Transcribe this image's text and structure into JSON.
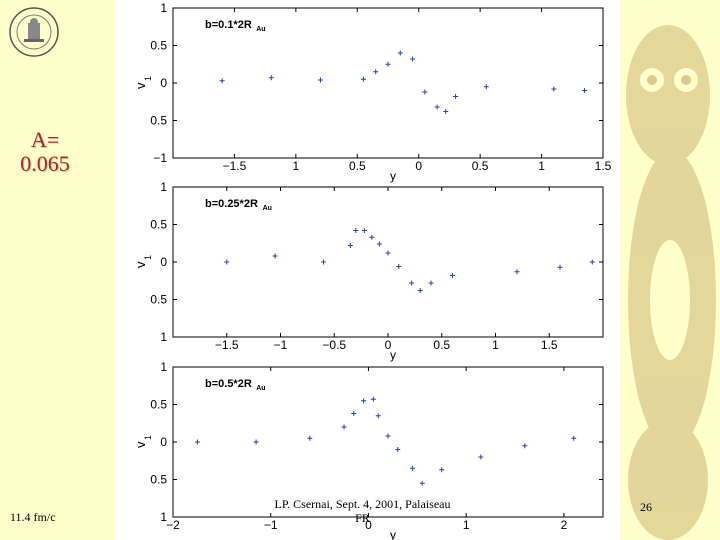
{
  "slide": {
    "a_value_line1": "A=",
    "a_value_line2": "0.065",
    "speed": "11.4 fm/c",
    "footer_line1": "LP. Csernai, Sept. 4, 2001, Palaiseau",
    "footer_line2": "FR",
    "page_number": "26",
    "logo_icon": "university-seal-icon",
    "background_icon": "owl-icon",
    "colors": {
      "background": "#ffffcc",
      "a_label": "#b22222",
      "marker": "#1f3fbf"
    }
  },
  "chart_data": [
    {
      "type": "scatter",
      "annotation": "b=0.1*2R",
      "annotation_sub": "Au",
      "xlabel": "y",
      "ylabel": "v",
      "ylabel_sub": "1",
      "xlim": [
        -2.0,
        1.5
      ],
      "ylim": [
        -1,
        1
      ],
      "xticks": [
        -1.5,
        -1,
        -0.5,
        0,
        0.5,
        1,
        1.5
      ],
      "xtick_labels": [
        "−1.5",
        "1",
        "0.5",
        "0",
        "0.5",
        "1",
        "1.5"
      ],
      "yticks": [
        -1,
        -0.5,
        0,
        0.5,
        1
      ],
      "ytick_labels": [
        "−1",
        "0.5",
        "0",
        "0.5",
        "1"
      ],
      "x": [
        -1.6,
        -1.2,
        -0.8,
        -0.45,
        -0.35,
        -0.25,
        -0.15,
        -0.05,
        0.05,
        0.15,
        0.22,
        0.3,
        0.55,
        1.1,
        1.35
      ],
      "y": [
        0.03,
        0.07,
        0.04,
        0.05,
        0.15,
        0.25,
        0.4,
        0.32,
        -0.12,
        -0.32,
        -0.38,
        -0.18,
        -0.05,
        -0.08,
        -0.1
      ]
    },
    {
      "type": "scatter",
      "annotation": "b=0.25*2R",
      "annotation_sub": "Au",
      "xlabel": "y",
      "ylabel": "v",
      "ylabel_sub": "1",
      "xlim": [
        -2.0,
        2.0
      ],
      "ylim": [
        -1,
        1
      ],
      "xticks": [
        -1.5,
        -1,
        -0.5,
        0,
        0.5,
        1,
        1.5
      ],
      "xtick_labels": [
        "−1.5",
        "−1",
        "−0.5",
        "0",
        "0.5",
        "1",
        "1.5"
      ],
      "yticks": [
        -1,
        -0.5,
        0,
        0.5,
        1
      ],
      "ytick_labels": [
        "1",
        "0.5",
        "0",
        "0.5",
        "1"
      ],
      "x": [
        -1.5,
        -1.05,
        -0.6,
        -0.35,
        -0.3,
        -0.22,
        -0.15,
        -0.08,
        0.0,
        0.1,
        0.22,
        0.3,
        0.4,
        0.6,
        1.2,
        1.6,
        1.9
      ],
      "y": [
        0.0,
        0.08,
        0.0,
        0.22,
        0.42,
        0.42,
        0.33,
        0.24,
        0.12,
        -0.06,
        -0.28,
        -0.38,
        -0.28,
        -0.18,
        -0.13,
        -0.07,
        0.0
      ]
    },
    {
      "type": "scatter",
      "annotation": "b=0.5*2R",
      "annotation_sub": "Au",
      "xlabel": "y",
      "ylabel": "v",
      "ylabel_sub": "1",
      "xlim": [
        -2.0,
        2.4
      ],
      "ylim": [
        -1,
        1
      ],
      "xticks": [
        -2,
        -1,
        0,
        1,
        2
      ],
      "xtick_labels": [
        "−2",
        "−1",
        "0",
        "1",
        "2"
      ],
      "yticks": [
        -1,
        -0.5,
        0,
        0.5,
        1
      ],
      "ytick_labels": [
        "1",
        "0.5",
        "0",
        "0.5",
        "1"
      ],
      "x": [
        -1.75,
        -1.15,
        -0.6,
        -0.25,
        -0.15,
        -0.05,
        0.05,
        0.1,
        0.2,
        0.3,
        0.45,
        0.55,
        0.75,
        1.15,
        1.6,
        2.1
      ],
      "y": [
        0.0,
        0.0,
        0.05,
        0.2,
        0.38,
        0.55,
        0.57,
        0.35,
        0.08,
        -0.1,
        -0.35,
        -0.55,
        -0.37,
        -0.2,
        -0.05,
        0.05
      ]
    }
  ]
}
